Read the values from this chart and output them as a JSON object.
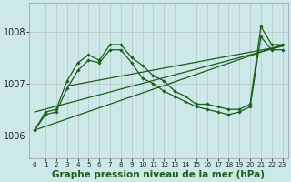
{
  "background_color": "#cce8e8",
  "line_color": "#1a5c1a",
  "title": "Graphe pression niveau de la mer (hPa)",
  "title_fontsize": 7.5,
  "ylim": [
    1005.55,
    1008.55
  ],
  "yticks": [
    1006,
    1007,
    1008
  ],
  "xlim": [
    -0.5,
    23.5
  ],
  "xticks": [
    0,
    1,
    2,
    3,
    4,
    5,
    6,
    7,
    8,
    9,
    10,
    11,
    12,
    13,
    14,
    15,
    16,
    17,
    18,
    19,
    20,
    21,
    22,
    23
  ],
  "hours": [
    0,
    1,
    2,
    3,
    4,
    5,
    6,
    7,
    8,
    9,
    10,
    11,
    12,
    13,
    14,
    15,
    16,
    17,
    18,
    19,
    20,
    21,
    22,
    23
  ],
  "main_y": [
    1006.1,
    1006.45,
    1006.5,
    1007.05,
    1007.4,
    1007.55,
    1007.45,
    1007.75,
    1007.75,
    1007.5,
    1007.35,
    1007.15,
    1007.05,
    1006.85,
    1006.75,
    1006.6,
    1006.6,
    1006.55,
    1006.5,
    1006.5,
    1006.6,
    1008.1,
    1007.75,
    1007.75
  ],
  "second_y": [
    1006.1,
    1006.4,
    1006.45,
    1006.9,
    1007.25,
    1007.45,
    1007.4,
    1007.65,
    1007.65,
    1007.4,
    1007.1,
    1007.0,
    1006.85,
    1006.75,
    1006.65,
    1006.55,
    1006.5,
    1006.45,
    1006.4,
    1006.45,
    1006.55,
    1007.9,
    1007.65,
    1007.65
  ],
  "trend1_x": [
    0,
    23
  ],
  "trend1_y": [
    1006.1,
    1007.75
  ],
  "trend2_x": [
    0,
    23
  ],
  "trend2_y": [
    1006.45,
    1007.72
  ],
  "trend3_x": [
    3,
    23
  ],
  "trend3_y": [
    1006.95,
    1007.72
  ]
}
